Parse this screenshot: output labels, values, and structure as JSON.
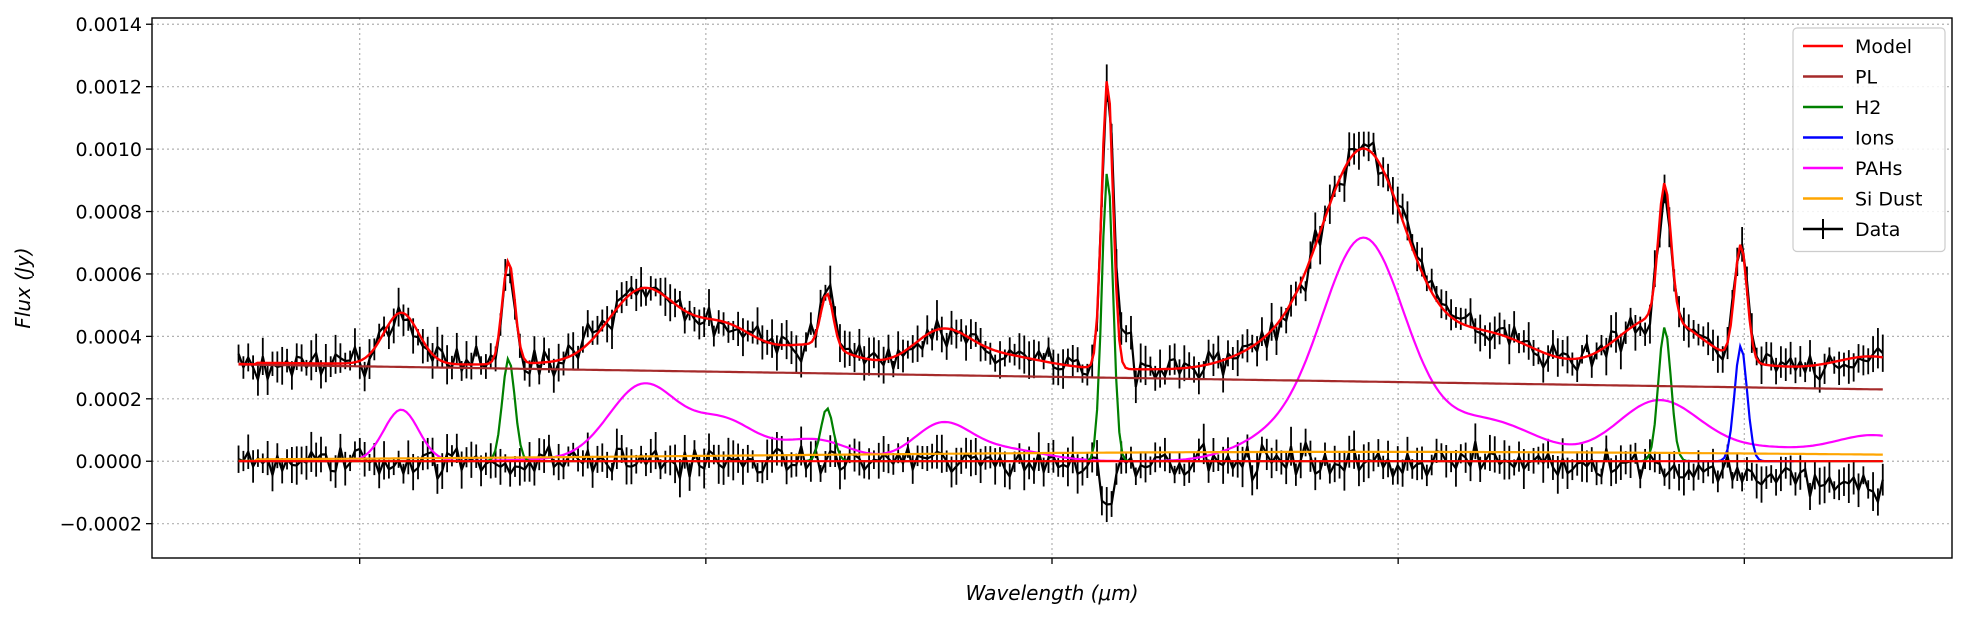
{
  "chart_data": {
    "type": "line",
    "title": "",
    "xlabel": "Wavelength (μm)",
    "ylabel": "Flux (Jy)",
    "xlim": [
      5.1,
      10.3
    ],
    "ylim": [
      -0.00031,
      0.00142
    ],
    "yticks": [
      -0.0002,
      0.0,
      0.0002,
      0.0004,
      0.0006,
      0.0008,
      0.001,
      0.0012,
      0.0014
    ],
    "ytick_labels": [
      "−0.0002",
      "0.0000",
      "0.0002",
      "0.0004",
      "0.0006",
      "0.0008",
      "0.0010",
      "0.0012",
      "0.0014"
    ],
    "xticks": [
      5.7,
      6.7,
      7.7,
      8.7,
      9.7
    ],
    "xtick_labels_visible": false,
    "grid": true,
    "legend_position": "top-right",
    "pah_features": [
      {
        "c": 5.25,
        "a": 2e-06,
        "w": 0.06
      },
      {
        "c": 5.82,
        "a": 0.000165,
        "w": 0.05
      },
      {
        "c": 6.22,
        "a": 5e-06,
        "w": 0.1
      },
      {
        "c": 6.52,
        "a": 0.000245,
        "w": 0.1
      },
      {
        "c": 6.75,
        "a": 0.00012,
        "w": 0.09
      },
      {
        "c": 7.0,
        "a": 5e-05,
        "w": 0.12
      },
      {
        "c": 7.02,
        "a": 2e-05,
        "w": 0.08
      },
      {
        "c": 7.38,
        "a": 0.00011,
        "w": 0.08
      },
      {
        "c": 7.55,
        "a": 4e-05,
        "w": 0.12
      },
      {
        "c": 8.6,
        "a": 0.0007,
        "w": 0.12
      },
      {
        "c": 8.35,
        "a": 7e-05,
        "w": 0.12
      },
      {
        "c": 8.95,
        "a": 0.00013,
        "w": 0.15
      },
      {
        "c": 9.45,
        "a": 0.00019,
        "w": 0.12
      },
      {
        "c": 9.75,
        "a": 4e-05,
        "w": 0.15
      },
      {
        "c": 10.08,
        "a": 8e-05,
        "w": 0.12
      }
    ],
    "h2_lines": [
      {
        "c": 5.25,
        "a": 6e-05,
        "w": 0.018
      },
      {
        "c": 6.13,
        "a": 0.00033,
        "w": 0.018
      },
      {
        "c": 7.05,
        "a": 0.00017,
        "w": 0.018
      },
      {
        "c": 7.86,
        "a": 0.00093,
        "w": 0.016
      },
      {
        "c": 9.47,
        "a": 0.00043,
        "w": 0.018
      }
    ],
    "ion_lines": [
      {
        "c": 9.69,
        "a": 0.00037,
        "w": 0.018
      }
    ],
    "pl": {
      "start": 0.00031,
      "end": 0.00023
    },
    "si_dust": {
      "peak": 3e-05,
      "center": 8.6,
      "width": 1.8,
      "end": 1.5e-05
    },
    "series": [
      {
        "name": "Model",
        "color": "#ff0000"
      },
      {
        "name": "PL",
        "color": "#a52a2a"
      },
      {
        "name": "H2",
        "color": "#008000"
      },
      {
        "name": "Ions",
        "color": "#0000ff"
      },
      {
        "name": "PAHs",
        "color": "#ff00ff"
      },
      {
        "name": "Si Dust",
        "color": "#ffa500"
      },
      {
        "name": "Data",
        "color": "#000000"
      }
    ]
  }
}
